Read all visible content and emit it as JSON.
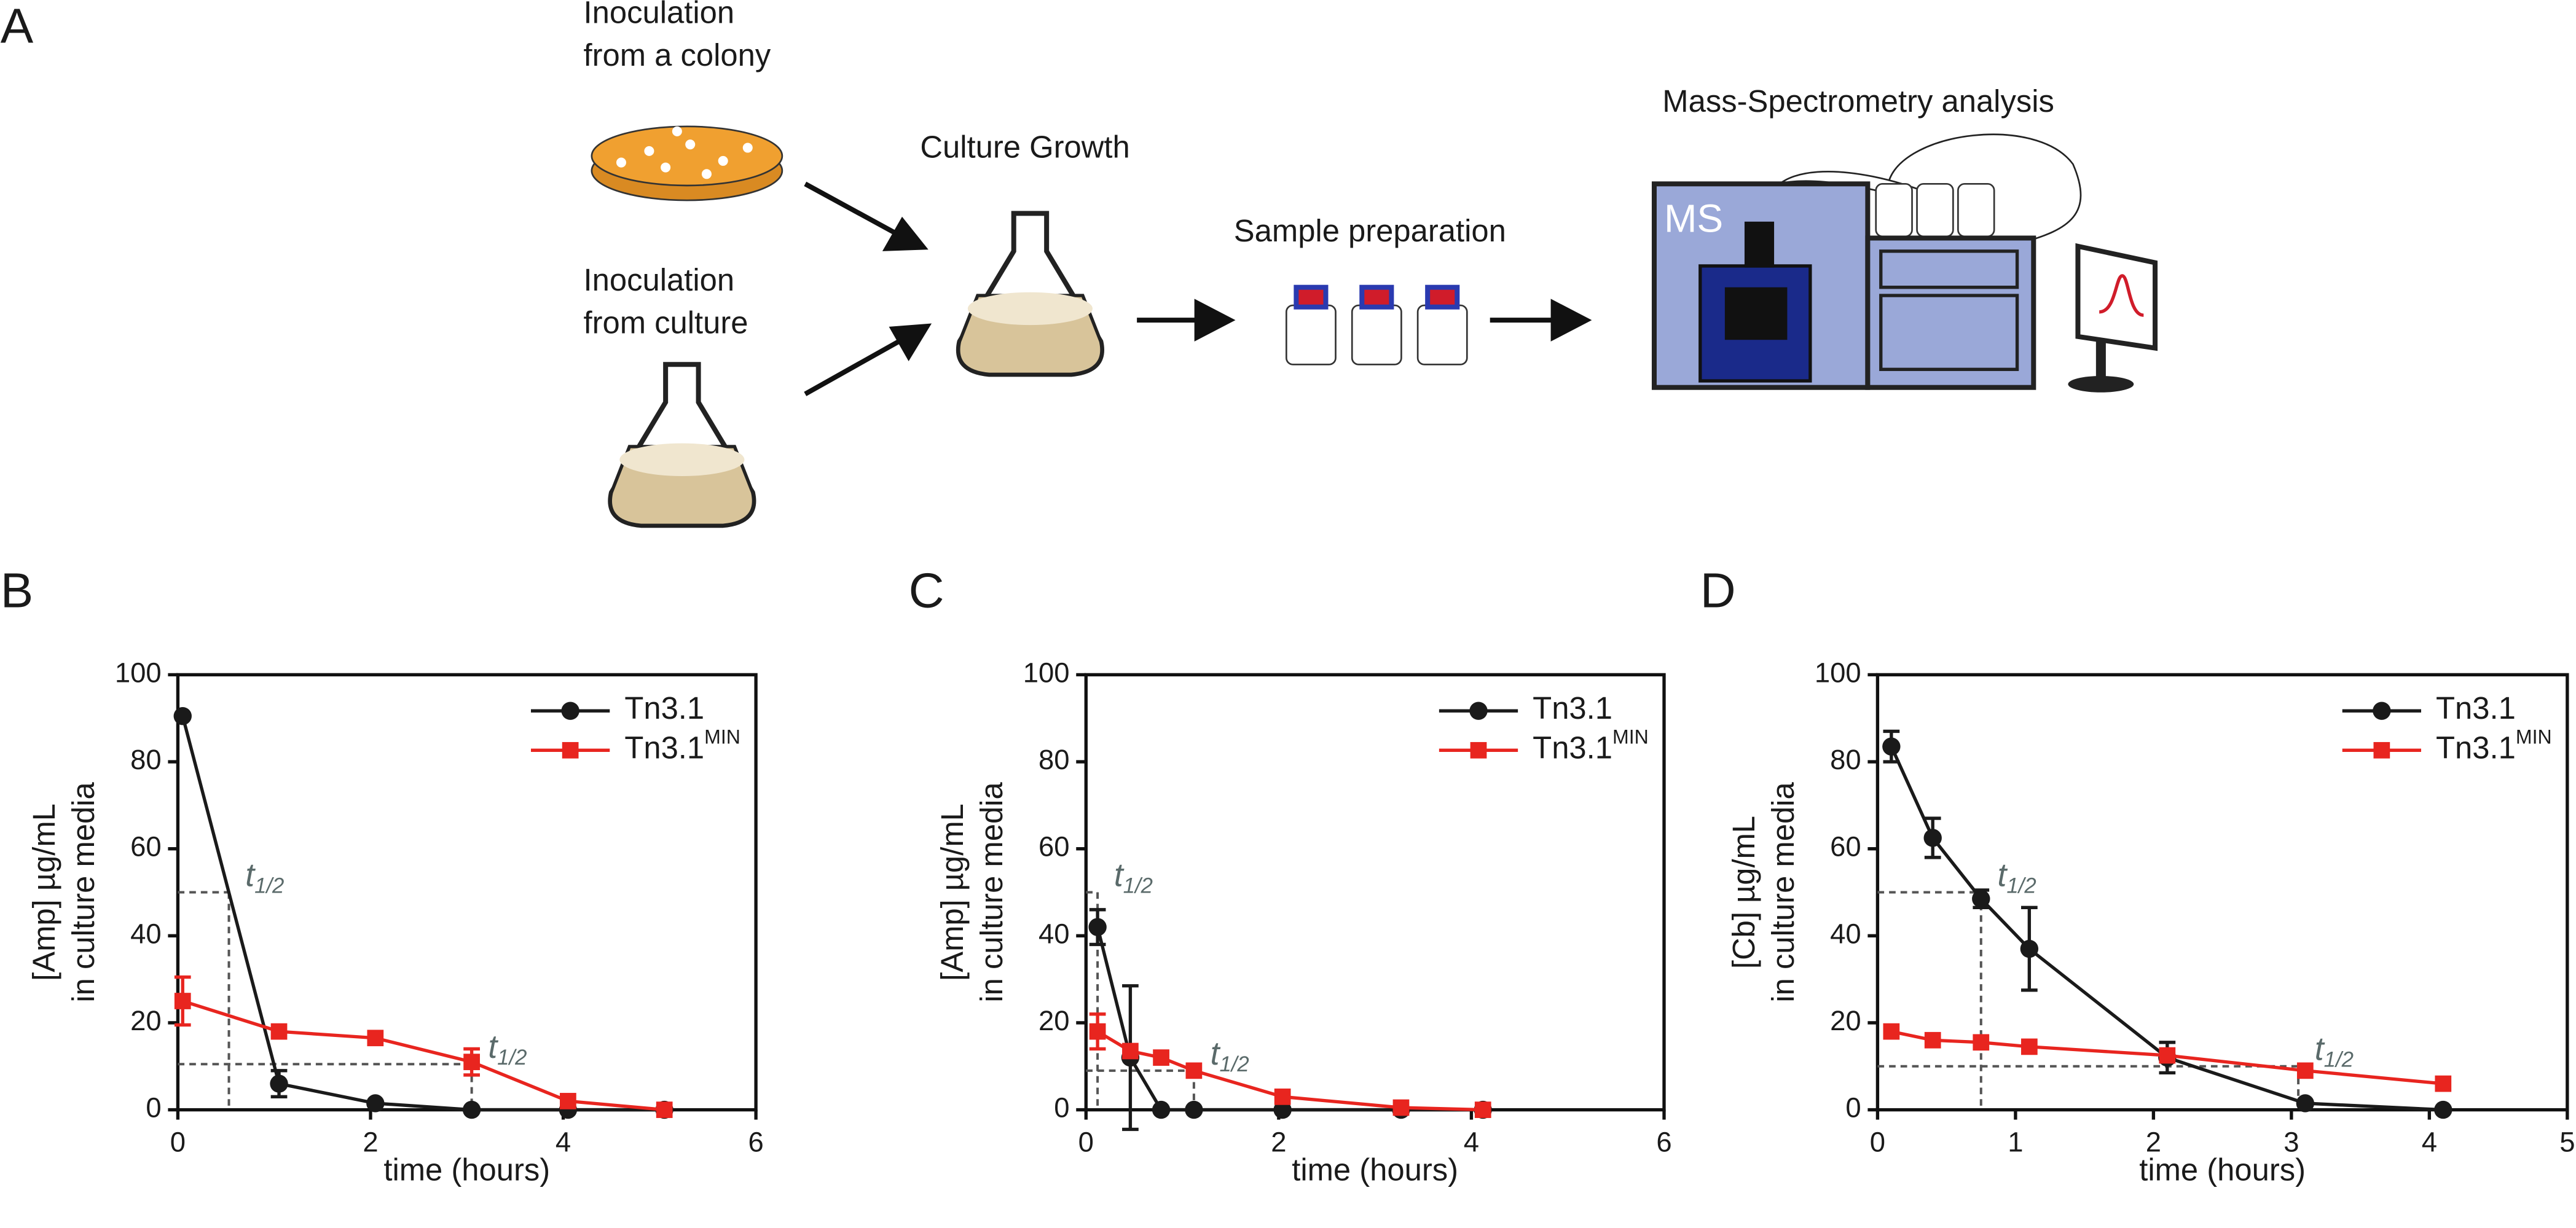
{
  "diagram": {
    "panel_label": "A",
    "inoculation_colony": [
      "Inoculation",
      "from a colony"
    ],
    "inoculation_culture": [
      "Inoculation",
      "from culture"
    ],
    "culture_growth": "Culture Growth",
    "sample_preparation": "Sample preparation",
    "ms_analysis": "Mass-Spectrometry analysis",
    "ms_label": "MS"
  },
  "chart_data": [
    {
      "type": "line",
      "panel_label": "B",
      "xlabel": "time (hours)",
      "ylabel": [
        "[Amp] µg/mL",
        "in culture media"
      ],
      "xlim": [
        0,
        6
      ],
      "xticks": [
        0,
        2,
        4,
        6
      ],
      "ylim": [
        0,
        100
      ],
      "yticks": [
        0,
        20,
        40,
        60,
        80,
        100
      ],
      "legend": "upper right",
      "guide_label": "t",
      "guide_label_subscript": "1/2",
      "half_life_guides": [
        {
          "x": 0.53,
          "y": 50
        },
        {
          "x": 3.05,
          "y": 10.5
        }
      ],
      "series": [
        {
          "name": "Tn3.1",
          "color": "#1a1a1a",
          "marker": "circle",
          "x": [
            0.05,
            1.05,
            2.05,
            3.05,
            4.05,
            5.05
          ],
          "values": [
            90.5,
            6,
            1.5,
            0,
            0,
            0
          ],
          "errors": [
            null,
            3,
            null,
            null,
            null,
            null
          ]
        },
        {
          "name": "Tn3.1",
          "name_superscript": "MIN",
          "color": "#e8251f",
          "marker": "square",
          "x": [
            0.05,
            1.05,
            2.05,
            3.05,
            4.05,
            5.05
          ],
          "values": [
            25,
            18,
            16.5,
            11,
            2,
            0
          ],
          "errors": [
            5.5,
            null,
            null,
            3,
            null,
            null
          ]
        }
      ]
    },
    {
      "type": "line",
      "panel_label": "C",
      "xlabel": "time (hours)",
      "ylabel": [
        "[Amp] µg/mL",
        "in culture media"
      ],
      "xlim": [
        0,
        6
      ],
      "xticks": [
        0,
        2,
        4,
        6
      ],
      "ylim": [
        0,
        100
      ],
      "yticks": [
        0,
        20,
        40,
        60,
        80,
        100
      ],
      "legend": "upper right",
      "guide_label": "t",
      "guide_label_subscript": "1/2",
      "half_life_guides": [
        {
          "x": 0.12,
          "y": 50
        },
        {
          "x": 1.12,
          "y": 9
        }
      ],
      "series": [
        {
          "name": "Tn3.1",
          "color": "#1a1a1a",
          "marker": "circle",
          "x": [
            0.12,
            0.46,
            0.78,
            1.12,
            2.04,
            3.27,
            4.12
          ],
          "values": [
            42,
            12,
            0,
            0,
            0,
            0,
            0
          ],
          "errors": [
            4,
            16.5,
            null,
            null,
            null,
            null,
            null
          ]
        },
        {
          "name": "Tn3.1",
          "name_superscript": "MIN",
          "color": "#e8251f",
          "marker": "square",
          "x": [
            0.12,
            0.46,
            0.78,
            1.12,
            2.04,
            3.27,
            4.12
          ],
          "values": [
            18,
            13.5,
            12,
            9,
            3,
            0.5,
            0
          ],
          "errors": [
            4,
            null,
            null,
            null,
            null,
            null,
            null
          ]
        }
      ]
    },
    {
      "type": "line",
      "panel_label": "D",
      "xlabel": "time (hours)",
      "ylabel": [
        "[Cb] µg/mL",
        "in culture media"
      ],
      "xlim": [
        0,
        5
      ],
      "xticks": [
        0,
        1,
        2,
        3,
        4,
        5
      ],
      "ylim": [
        0,
        100
      ],
      "yticks": [
        0,
        20,
        40,
        60,
        80,
        100
      ],
      "legend": "upper right",
      "guide_label": "t",
      "guide_label_subscript": "1/2",
      "half_life_guides": [
        {
          "x": 0.75,
          "y": 50
        },
        {
          "x": 3.05,
          "y": 10
        }
      ],
      "series": [
        {
          "name": "Tn3.1",
          "color": "#1a1a1a",
          "marker": "circle",
          "x": [
            0.1,
            0.4,
            0.75,
            1.1,
            2.1,
            3.1,
            4.1
          ],
          "values": [
            83.5,
            62.5,
            48.5,
            37,
            12,
            1.5,
            0
          ],
          "errors": [
            3.5,
            4.5,
            2,
            9.5,
            3.5,
            null,
            null
          ]
        },
        {
          "name": "Tn3.1",
          "name_superscript": "MIN",
          "color": "#e8251f",
          "marker": "square",
          "x": [
            0.1,
            0.4,
            0.75,
            1.1,
            2.1,
            3.1,
            4.1
          ],
          "values": [
            18,
            16,
            15.5,
            14.5,
            12.5,
            9,
            6
          ],
          "errors": [
            null,
            null,
            null,
            null,
            null,
            null,
            null
          ]
        }
      ]
    }
  ]
}
